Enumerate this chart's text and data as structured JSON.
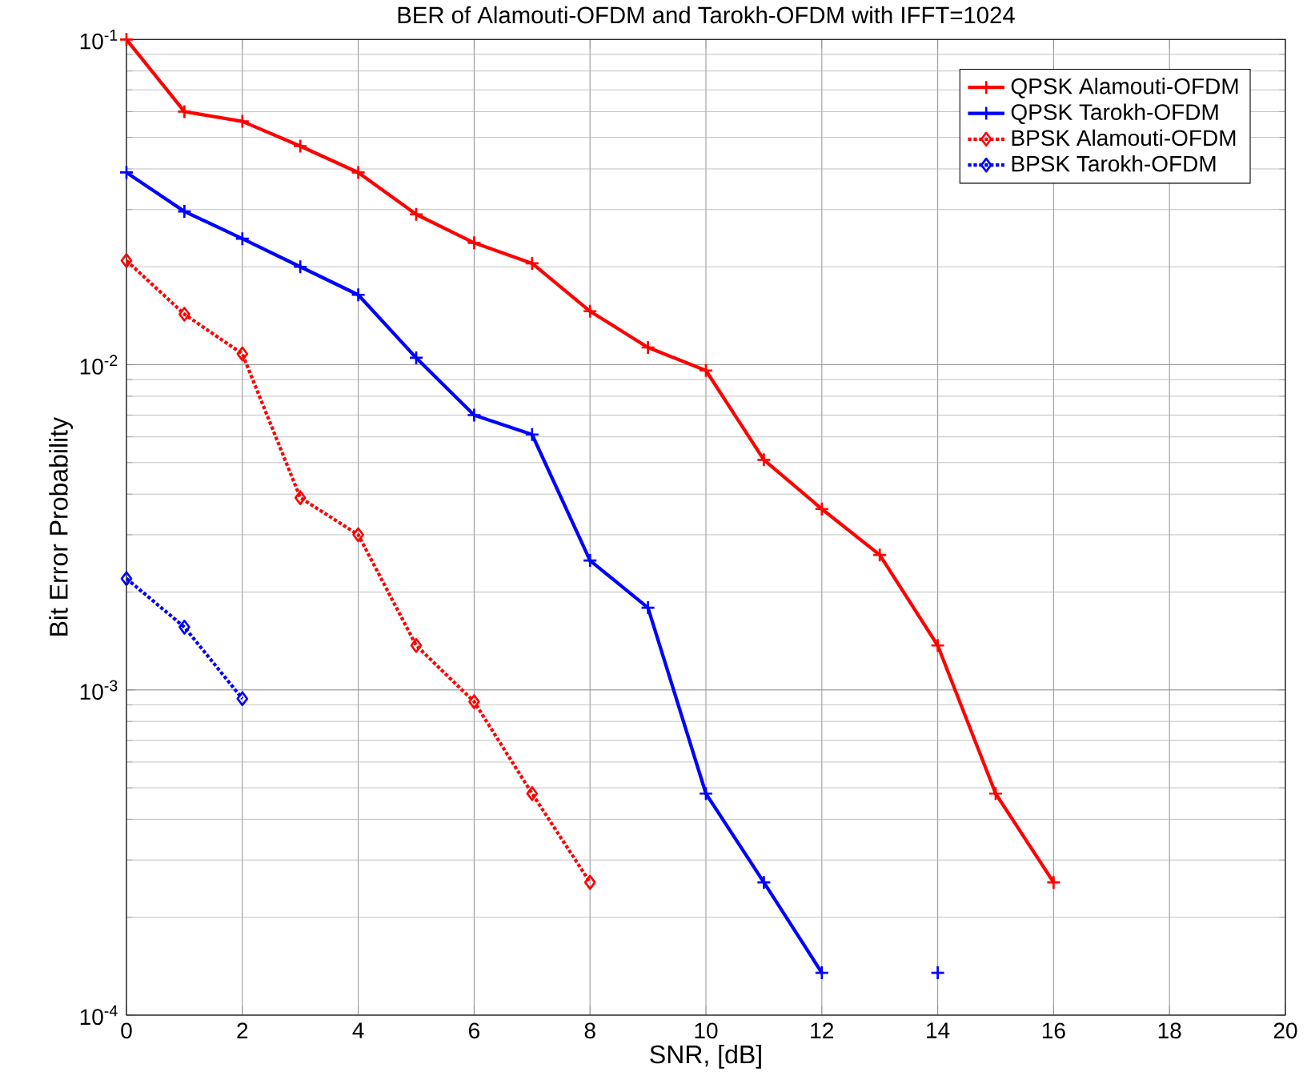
{
  "chart_data": {
    "type": "line",
    "title": "BER of Alamouti-OFDM and Tarokh-OFDM with IFFT=1024",
    "xlabel": "SNR, [dB]",
    "ylabel": "Bit Error Probability",
    "x": [
      0,
      1,
      2,
      3,
      4,
      5,
      6,
      7,
      8,
      9,
      10,
      11,
      12,
      13,
      14,
      15,
      16
    ],
    "series": [
      {
        "name": "QPSK Alamouti-OFDM",
        "color": "#ff0000",
        "marker": "cross",
        "line_style": "solid",
        "values": [
          0.1,
          0.06,
          0.056,
          0.047,
          0.039,
          0.029,
          0.0237,
          0.0205,
          0.0146,
          0.0113,
          0.0096,
          0.0051,
          0.0036,
          0.0026,
          0.00137,
          0.00048,
          0.000256
        ]
      },
      {
        "name": "QPSK Tarokh-OFDM",
        "color": "#0000ff",
        "marker": "cross",
        "line_style": "solid",
        "values": [
          0.039,
          0.0296,
          0.0244,
          0.02,
          0.0164,
          0.0105,
          0.007,
          0.0061,
          0.0025,
          0.00179,
          0.00048,
          0.000256,
          0.000135,
          null,
          0.000135,
          null,
          null
        ]
      },
      {
        "name": "BPSK Alamouti-OFDM",
        "color": "#ff0000",
        "marker": "diamond",
        "line_style": "dotted",
        "values": [
          0.0209,
          0.0143,
          0.0108,
          0.0039,
          0.003,
          0.00137,
          0.00092,
          0.00048,
          0.000256,
          null,
          null,
          null,
          null,
          null,
          null,
          null,
          null
        ]
      },
      {
        "name": "BPSK Tarokh-OFDM",
        "color": "#0000ff",
        "marker": "diamond",
        "line_style": "dotted",
        "values": [
          0.0022,
          0.00156,
          0.00094,
          null,
          null,
          null,
          null,
          null,
          null,
          null,
          null,
          null,
          null,
          null,
          null,
          null,
          null
        ]
      }
    ],
    "log": "y",
    "grid": true,
    "legend": "top right",
    "xlim": [
      0,
      20
    ],
    "xticks": [
      0,
      2,
      4,
      6,
      8,
      10,
      12,
      14,
      16,
      18,
      20
    ],
    "ylim": [
      0.0001,
      0.1
    ],
    "yticks": [
      {
        "value": 0.0001,
        "label": "10$^{-4}$"
      },
      {
        "value": 0.001,
        "label": "10$^{-3}$"
      },
      {
        "value": 0.01,
        "label": "10$^{-2}$"
      },
      {
        "value": 0.1,
        "label": "10$^{-1}$"
      }
    ]
  }
}
